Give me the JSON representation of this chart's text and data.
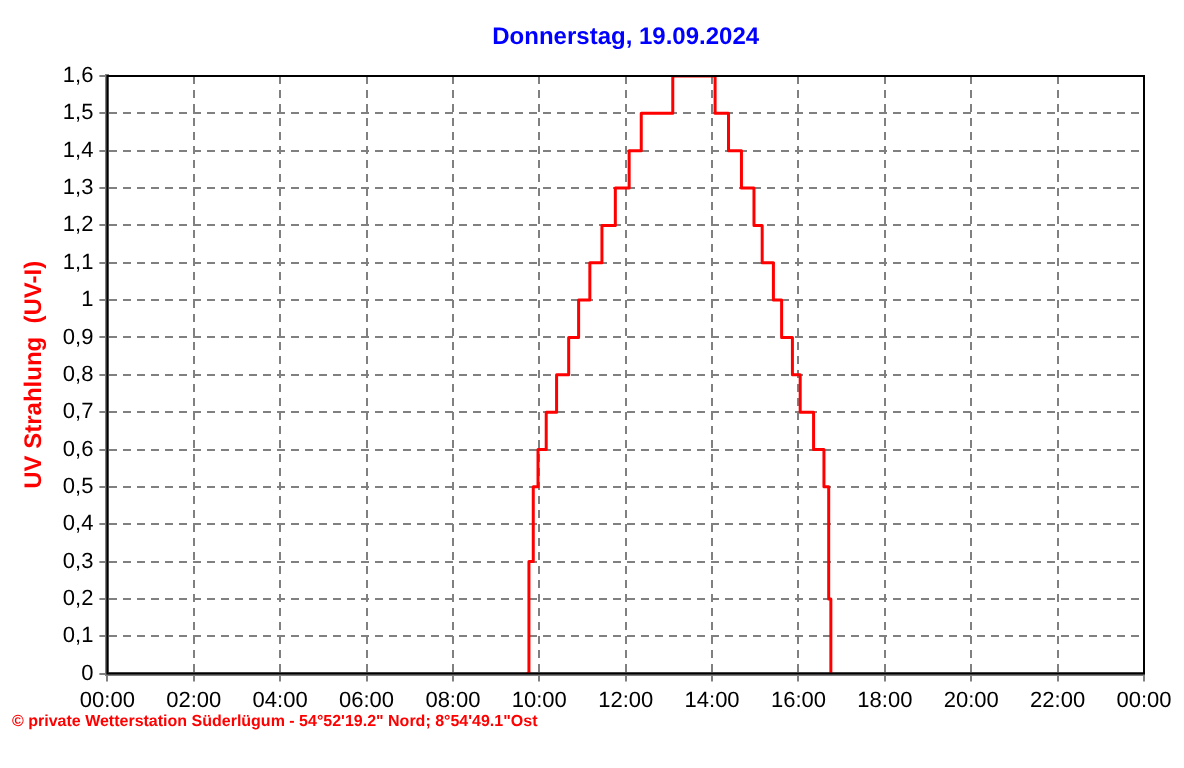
{
  "chart_data": {
    "type": "step",
    "title": "Donnerstag, 19.09.2024",
    "ylabel": "UV Strahlung  (UV-I)",
    "x": [
      9.7,
      9.76,
      9.86,
      9.97,
      10.16,
      10.4,
      10.68,
      10.91,
      11.17,
      11.45,
      11.76,
      12.08,
      12.36,
      13.09,
      14.07,
      14.38,
      14.68,
      14.97,
      15.16,
      15.42,
      15.61,
      15.86,
      16.04,
      16.35,
      16.59,
      16.7,
      16.75
    ],
    "series": [
      {
        "color": "#ff0000",
        "values": [
          0,
          0.3,
          0.5,
          0.6,
          0.7,
          0.8,
          0.9,
          1.0,
          1.1,
          1.2,
          1.3,
          1.4,
          1.5,
          1.6,
          1.5,
          1.4,
          1.3,
          1.2,
          1.1,
          1.0,
          0.9,
          0.8,
          0.7,
          0.6,
          0.5,
          0.2,
          0
        ]
      }
    ],
    "xlim": [
      0,
      24
    ],
    "xticks": [
      {
        "value": 0,
        "label": "00:00"
      },
      {
        "value": 2,
        "label": "02:00"
      },
      {
        "value": 4,
        "label": "04:00"
      },
      {
        "value": 6,
        "label": "06:00"
      },
      {
        "value": 8,
        "label": "08:00"
      },
      {
        "value": 10,
        "label": "10:00"
      },
      {
        "value": 12,
        "label": "12:00"
      },
      {
        "value": 14,
        "label": "14:00"
      },
      {
        "value": 16,
        "label": "16:00"
      },
      {
        "value": 18,
        "label": "18:00"
      },
      {
        "value": 20,
        "label": "20:00"
      },
      {
        "value": 22,
        "label": "22:00"
      },
      {
        "value": 24,
        "label": "00:00"
      }
    ],
    "ylim": [
      0,
      1.6
    ],
    "yticks": [
      0,
      {
        "value": 0.1,
        "label": "0,1"
      },
      {
        "value": 0.2,
        "label": "0,2"
      },
      {
        "value": 0.3,
        "label": "0,3"
      },
      {
        "value": 0.4,
        "label": "0,4"
      },
      {
        "value": 0.5,
        "label": "0,5"
      },
      {
        "value": 0.6,
        "label": "0,6"
      },
      {
        "value": 0.7,
        "label": "0,7"
      },
      {
        "value": 0.8,
        "label": "0,8"
      },
      {
        "value": 0.9,
        "label": "0,9"
      },
      1,
      {
        "value": 1.1,
        "label": "1,1"
      },
      {
        "value": 1.2,
        "label": "1,2"
      },
      {
        "value": 1.3,
        "label": "1,3"
      },
      {
        "value": 1.4,
        "label": "1,4"
      },
      {
        "value": 1.5,
        "label": "1,5"
      },
      {
        "value": 1.6,
        "label": "1,6"
      }
    ],
    "grid": true,
    "legend": false,
    "marker": "none",
    "line_style": "solid",
    "annotations": [
      "© private Wetterstation Süderlügum - 54°52'19.2\" Nord; 8°54'49.1\"Ost"
    ]
  }
}
